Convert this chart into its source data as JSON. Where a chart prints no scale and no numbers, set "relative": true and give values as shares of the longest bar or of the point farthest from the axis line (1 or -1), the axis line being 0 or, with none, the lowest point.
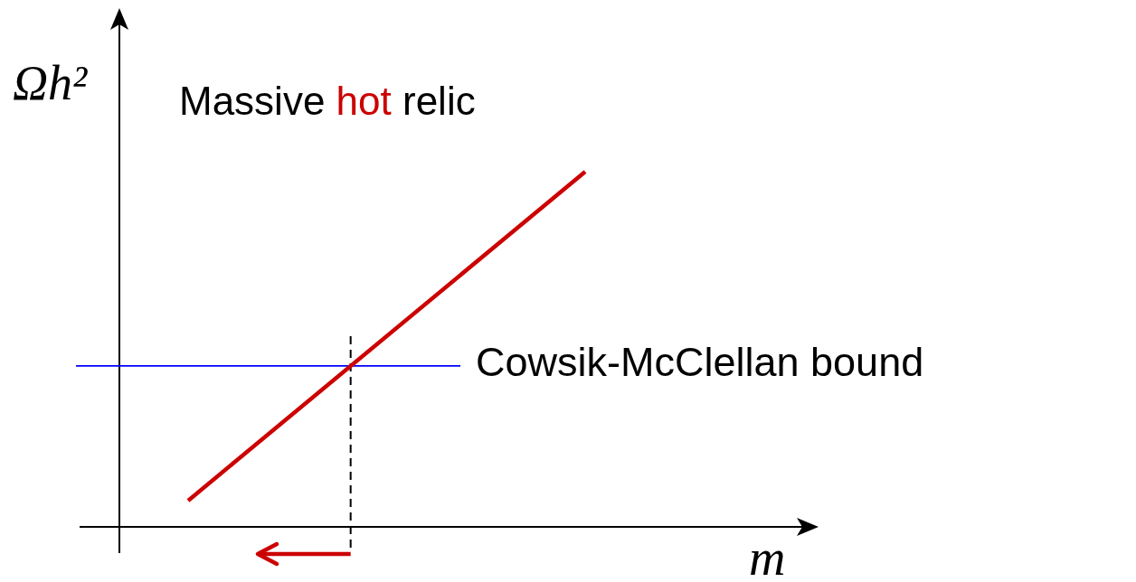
{
  "chart_data": {
    "type": "line",
    "relative": true,
    "title": "Massive hot relic",
    "ylabel": "Ωh²",
    "xlabel": "m",
    "categories": [
      null,
      null
    ],
    "series": [
      {
        "color": "#cc0000",
        "values": [
          0.074,
          1
        ]
      }
    ],
    "ref_lines": [
      {
        "axis": "y",
        "value": 0.453,
        "label": "Cowsik-McClellan bound",
        "color": "#0000ff"
      }
    ]
  }
}
